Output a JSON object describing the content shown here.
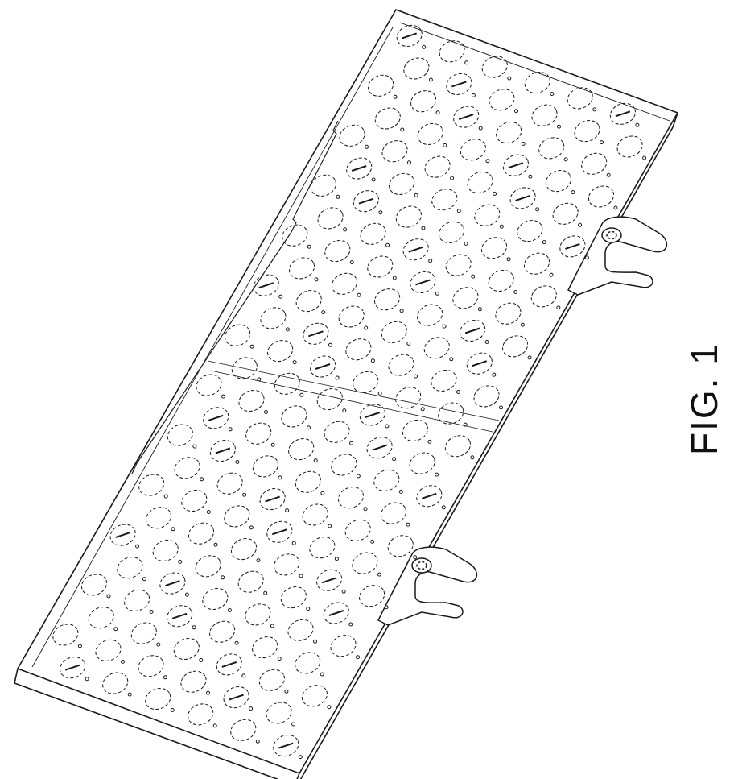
{
  "figure": {
    "label": "FIG. 1"
  },
  "colors": {
    "line": "#1a1a1a",
    "paper": "#ffffff"
  }
}
